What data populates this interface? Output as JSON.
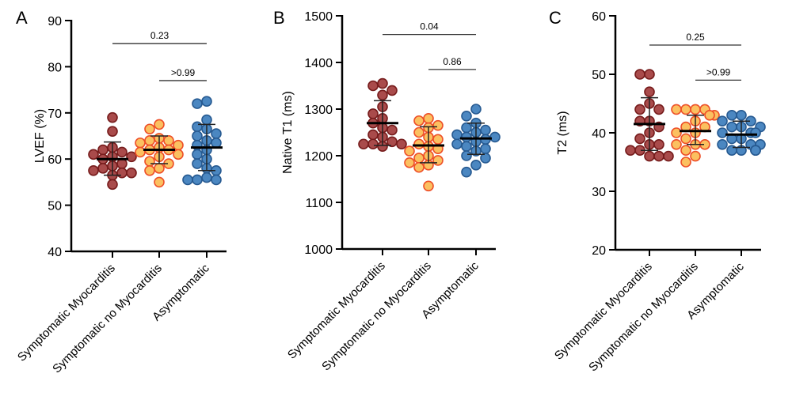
{
  "chart_data": [
    {
      "type": "scatter",
      "panel_label": "A",
      "ylabel": "LVEF (%)",
      "ylim": [
        40,
        90
      ],
      "yticks": [
        40,
        50,
        60,
        70,
        80,
        90
      ],
      "categories": [
        "Symptomatic Myocarditis",
        "Symptomatic no Myocarditis",
        "Asymptomatic"
      ],
      "series": [
        {
          "values": [
            69,
            66,
            62.5,
            62,
            61.5,
            61,
            60.5,
            60.5,
            60,
            59,
            58.5,
            58,
            57.5,
            57,
            57,
            56.5,
            54.5
          ],
          "mean": 60,
          "sd_range": [
            56.5,
            63.7
          ]
        },
        {
          "values": [
            67.5,
            66.5,
            64.5,
            64,
            64,
            63.5,
            63,
            62.5,
            62,
            62,
            61.5,
            61,
            60.5,
            59.5,
            59,
            58,
            57.5,
            55
          ],
          "mean": 62,
          "sd_range": [
            59,
            65
          ]
        },
        {
          "values": [
            72.5,
            72,
            68.5,
            67,
            66.5,
            65.5,
            65,
            64,
            63.5,
            63,
            62,
            61,
            60,
            59,
            58,
            57.5,
            56,
            55.5,
            55.5,
            55.5
          ],
          "mean": 62.5,
          "sd_range": [
            57.5,
            67.5
          ]
        }
      ],
      "comparisons": [
        {
          "from": 0,
          "to": 2,
          "level": 85,
          "label": "0.23"
        },
        {
          "from": 1,
          "to": 2,
          "level": 77,
          "label": ">0.99"
        }
      ]
    },
    {
      "type": "scatter",
      "panel_label": "B",
      "ylabel": "Native T1 (ms)",
      "ylim": [
        1000,
        1500
      ],
      "yticks": [
        1000,
        1100,
        1200,
        1300,
        1400,
        1500
      ],
      "categories": [
        "Symptomatic Myocarditis",
        "Symptomatic no Myocarditis",
        "Asymptomatic"
      ],
      "series": [
        {
          "values": [
            1355,
            1350,
            1340,
            1330,
            1305,
            1290,
            1280,
            1270,
            1260,
            1255,
            1245,
            1240,
            1230,
            1225,
            1225,
            1225,
            1220
          ],
          "mean": 1270,
          "sd_range": [
            1222,
            1318
          ]
        },
        {
          "values": [
            1280,
            1275,
            1265,
            1260,
            1250,
            1240,
            1235,
            1225,
            1220,
            1215,
            1210,
            1200,
            1195,
            1190,
            1185,
            1180,
            1175,
            1135
          ],
          "mean": 1222,
          "sd_range": [
            1185,
            1262
          ]
        },
        {
          "values": [
            1300,
            1285,
            1270,
            1260,
            1255,
            1250,
            1245,
            1240,
            1240,
            1235,
            1230,
            1225,
            1220,
            1215,
            1210,
            1200,
            1195,
            1180,
            1165
          ],
          "mean": 1237,
          "sd_range": [
            1203,
            1270
          ]
        }
      ],
      "comparisons": [
        {
          "from": 0,
          "to": 2,
          "level": 1460,
          "label": "0.04"
        },
        {
          "from": 1,
          "to": 2,
          "level": 1385,
          "label": "0.86"
        }
      ]
    },
    {
      "type": "scatter",
      "panel_label": "C",
      "ylabel": "T2 (ms)",
      "ylim": [
        20,
        60
      ],
      "yticks": [
        20,
        30,
        40,
        50,
        60
      ],
      "categories": [
        "Symptomatic Myocarditis",
        "Symptomatic no Myocarditis",
        "Asymptomatic"
      ],
      "series": [
        {
          "values": [
            50,
            50,
            47,
            45,
            44,
            44,
            42,
            42,
            41,
            40,
            39,
            38,
            38,
            37,
            37,
            36,
            36,
            36
          ],
          "mean": 41.5,
          "sd_range": [
            37,
            46
          ]
        },
        {
          "values": [
            44,
            44,
            44,
            44,
            43,
            43,
            42,
            41,
            41,
            40,
            40,
            39,
            38,
            38,
            38,
            37,
            36,
            35
          ],
          "mean": 40.3,
          "sd_range": [
            38,
            43
          ]
        },
        {
          "values": [
            43,
            43,
            42,
            42,
            41,
            41,
            41,
            40,
            40,
            40,
            39,
            39,
            38,
            38,
            38,
            37,
            37,
            37,
            37,
            37
          ],
          "mean": 39.7,
          "sd_range": [
            37.5,
            42
          ]
        }
      ],
      "comparisons": [
        {
          "from": 0,
          "to": 2,
          "level": 55,
          "label": "0.25"
        },
        {
          "from": 1,
          "to": 2,
          "level": 49,
          "label": ">0.99"
        }
      ]
    }
  ],
  "colors": {
    "symptomatic_myocarditis": {
      "fill": "#a94b4b",
      "stroke": "#761c1c"
    },
    "symptomatic_no_myocarditis": {
      "fill": "#fbc060",
      "stroke": "#ee4f28"
    },
    "asymptomatic": {
      "fill": "#4b87c1",
      "stroke": "#275a91"
    }
  }
}
